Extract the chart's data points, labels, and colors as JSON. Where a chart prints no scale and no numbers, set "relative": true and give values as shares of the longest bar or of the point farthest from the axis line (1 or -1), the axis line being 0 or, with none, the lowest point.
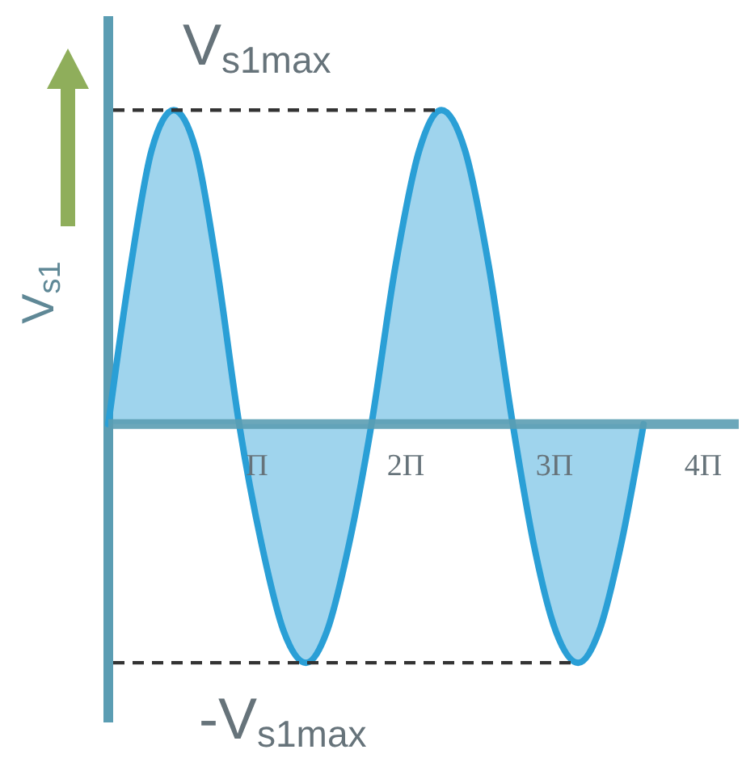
{
  "chart_data": {
    "type": "area",
    "ylabel": "V$_{s1}$",
    "relative": true,
    "color": "#2a9fd6",
    "x": [
      0,
      0.15,
      0.29,
      0.44,
      0.59,
      0.73,
      0.88,
      1.03,
      1.18,
      1.33,
      1.47,
      1.62,
      1.77,
      1.93,
      2.09,
      2.24,
      2.4,
      2.56,
      2.72,
      2.86,
      3.01,
      3.16,
      3.3,
      3.45,
      3.6
    ],
    "values": [
      0,
      0.5,
      0.87,
      1,
      0.87,
      0.5,
      0,
      -0.38,
      -0.66,
      -0.76,
      -0.66,
      -0.38,
      0,
      0.5,
      0.87,
      1,
      0.87,
      0.5,
      0,
      -0.38,
      -0.66,
      -0.76,
      -0.66,
      -0.38,
      0
    ],
    "xlim": [
      0,
      4.24
    ],
    "xticks": [
      {
        "value": 1,
        "label": "Π"
      },
      {
        "value": 2,
        "label": "2Π"
      },
      {
        "value": 3,
        "label": "3Π"
      },
      {
        "value": 4,
        "label": "4Π"
      }
    ],
    "ref_lines": [
      {
        "axis": "y",
        "value": 1,
        "label": "V$_{s1max}$",
        "color": "#333333",
        "line_style": "dashed"
      },
      {
        "axis": "y",
        "value": -0.76,
        "label": "-V$_{s1max}$",
        "color": "#333333",
        "line_style": "dashed"
      }
    ]
  }
}
